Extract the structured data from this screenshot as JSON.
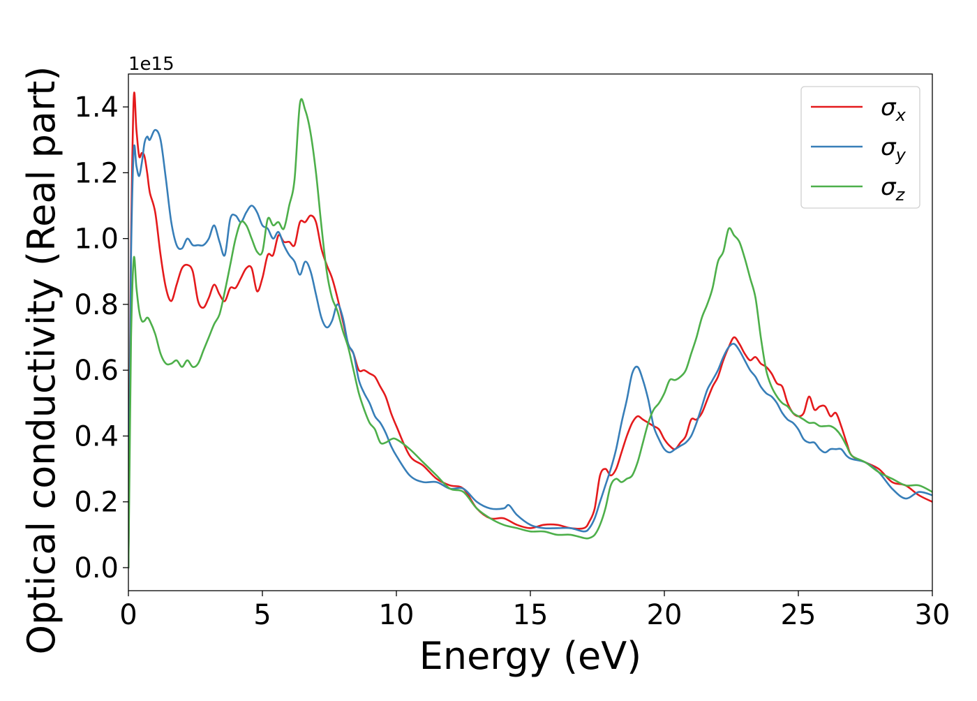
{
  "chart_data": {
    "type": "line",
    "title": "",
    "xlabel": "Energy (eV)",
    "ylabel": "Optical conductivity (Real part)",
    "y_offset_label": "1e15",
    "xlim": [
      0,
      30
    ],
    "ylim": [
      -0.07,
      1.5
    ],
    "x_ticks": [
      0,
      5,
      10,
      15,
      20,
      25,
      30
    ],
    "x_tick_labels": [
      "0",
      "5",
      "10",
      "15",
      "20",
      "25",
      "30"
    ],
    "y_ticks": [
      0.0,
      0.2,
      0.4,
      0.6,
      0.8,
      1.0,
      1.2,
      1.4
    ],
    "y_tick_labels": [
      "0.0",
      "0.2",
      "0.4",
      "0.6",
      "0.8",
      "1.0",
      "1.2",
      "1.4"
    ],
    "grid": false,
    "legend_position": "top-right",
    "series": [
      {
        "name": "σx",
        "symbol": "σ",
        "subscript": "x",
        "color": "#e41a1c",
        "x": [
          0,
          0.05,
          0.1,
          0.2,
          0.3,
          0.4,
          0.5,
          0.6,
          0.7,
          0.8,
          1.0,
          1.2,
          1.4,
          1.6,
          1.8,
          2.0,
          2.2,
          2.4,
          2.6,
          2.8,
          3.0,
          3.2,
          3.4,
          3.6,
          3.8,
          4.0,
          4.2,
          4.4,
          4.6,
          4.8,
          5.0,
          5.2,
          5.4,
          5.6,
          5.8,
          6.0,
          6.2,
          6.4,
          6.6,
          6.8,
          7.0,
          7.2,
          7.4,
          7.6,
          7.8,
          8.0,
          8.2,
          8.4,
          8.6,
          8.8,
          9.0,
          9.2,
          9.4,
          9.6,
          9.8,
          10.0,
          10.5,
          11.0,
          11.5,
          12.0,
          12.5,
          13.0,
          13.5,
          14.0,
          14.5,
          15.0,
          15.5,
          16.0,
          16.5,
          17.0,
          17.2,
          17.4,
          17.6,
          17.8,
          18.0,
          18.2,
          18.4,
          18.6,
          18.8,
          19.0,
          19.2,
          19.4,
          19.6,
          19.8,
          20.0,
          20.2,
          20.4,
          20.6,
          20.8,
          21.0,
          21.2,
          21.4,
          21.6,
          21.8,
          22.0,
          22.2,
          22.4,
          22.6,
          22.8,
          23.0,
          23.2,
          23.4,
          23.6,
          23.8,
          24.0,
          24.2,
          24.4,
          24.6,
          24.8,
          25.0,
          25.2,
          25.4,
          25.6,
          25.8,
          26.0,
          26.2,
          26.4,
          26.6,
          26.8,
          27.0,
          27.5,
          28.0,
          28.5,
          29.0,
          29.5,
          30.0
        ],
        "y": [
          0.0,
          0.55,
          1.0,
          1.43,
          1.33,
          1.25,
          1.26,
          1.25,
          1.2,
          1.14,
          1.08,
          0.95,
          0.85,
          0.81,
          0.86,
          0.91,
          0.92,
          0.9,
          0.81,
          0.79,
          0.82,
          0.86,
          0.83,
          0.81,
          0.85,
          0.85,
          0.88,
          0.91,
          0.91,
          0.84,
          0.88,
          0.95,
          0.95,
          1.01,
          0.99,
          0.99,
          0.98,
          1.05,
          1.05,
          1.07,
          1.05,
          0.97,
          0.92,
          0.88,
          0.82,
          0.75,
          0.68,
          0.65,
          0.6,
          0.6,
          0.59,
          0.58,
          0.55,
          0.52,
          0.47,
          0.43,
          0.34,
          0.31,
          0.27,
          0.25,
          0.24,
          0.18,
          0.15,
          0.15,
          0.13,
          0.12,
          0.13,
          0.13,
          0.12,
          0.12,
          0.14,
          0.18,
          0.28,
          0.3,
          0.28,
          0.3,
          0.35,
          0.4,
          0.44,
          0.46,
          0.45,
          0.44,
          0.43,
          0.42,
          0.39,
          0.37,
          0.36,
          0.38,
          0.4,
          0.45,
          0.45,
          0.47,
          0.51,
          0.55,
          0.58,
          0.63,
          0.67,
          0.7,
          0.68,
          0.65,
          0.63,
          0.64,
          0.62,
          0.61,
          0.59,
          0.56,
          0.55,
          0.5,
          0.47,
          0.46,
          0.47,
          0.52,
          0.48,
          0.49,
          0.49,
          0.46,
          0.47,
          0.43,
          0.38,
          0.34,
          0.32,
          0.3,
          0.26,
          0.25,
          0.22,
          0.2
        ]
      },
      {
        "name": "σy",
        "symbol": "σ",
        "subscript": "y",
        "color": "#377eb8",
        "x": [
          0,
          0.05,
          0.1,
          0.2,
          0.3,
          0.4,
          0.5,
          0.6,
          0.7,
          0.8,
          1.0,
          1.2,
          1.4,
          1.6,
          1.8,
          2.0,
          2.2,
          2.4,
          2.6,
          2.8,
          3.0,
          3.2,
          3.4,
          3.6,
          3.8,
          4.0,
          4.2,
          4.4,
          4.6,
          4.8,
          5.0,
          5.2,
          5.4,
          5.6,
          5.8,
          6.0,
          6.2,
          6.4,
          6.6,
          6.8,
          7.0,
          7.2,
          7.4,
          7.6,
          7.8,
          8.0,
          8.2,
          8.4,
          8.6,
          8.8,
          9.0,
          9.2,
          9.4,
          9.6,
          9.8,
          10.0,
          10.5,
          11.0,
          11.5,
          12.0,
          12.5,
          13.0,
          13.5,
          14.0,
          14.2,
          14.5,
          15.0,
          15.5,
          16.0,
          16.5,
          17.0,
          17.2,
          17.4,
          17.6,
          17.8,
          18.0,
          18.2,
          18.4,
          18.6,
          18.8,
          19.0,
          19.2,
          19.4,
          19.6,
          19.8,
          20.0,
          20.2,
          20.4,
          20.6,
          20.8,
          21.0,
          21.2,
          21.4,
          21.6,
          21.8,
          22.0,
          22.2,
          22.4,
          22.6,
          22.8,
          23.0,
          23.2,
          23.4,
          23.6,
          23.8,
          24.0,
          24.2,
          24.4,
          24.6,
          24.8,
          25.0,
          25.2,
          25.4,
          25.6,
          25.8,
          26.0,
          26.2,
          26.4,
          26.6,
          26.8,
          27.0,
          27.5,
          28.0,
          28.5,
          29.0,
          29.5,
          30.0
        ],
        "y": [
          0.0,
          0.5,
          0.95,
          1.27,
          1.22,
          1.19,
          1.23,
          1.29,
          1.31,
          1.3,
          1.33,
          1.3,
          1.18,
          1.05,
          0.98,
          0.97,
          1.0,
          0.98,
          0.98,
          0.98,
          1.0,
          1.04,
          0.99,
          0.95,
          1.06,
          1.07,
          1.05,
          1.08,
          1.1,
          1.08,
          1.04,
          1.03,
          1.0,
          1.02,
          0.98,
          0.95,
          0.93,
          0.89,
          0.93,
          0.9,
          0.83,
          0.76,
          0.73,
          0.75,
          0.8,
          0.76,
          0.68,
          0.65,
          0.57,
          0.53,
          0.5,
          0.46,
          0.44,
          0.41,
          0.37,
          0.34,
          0.28,
          0.26,
          0.26,
          0.24,
          0.24,
          0.2,
          0.18,
          0.18,
          0.19,
          0.16,
          0.13,
          0.12,
          0.12,
          0.12,
          0.11,
          0.12,
          0.15,
          0.2,
          0.25,
          0.3,
          0.36,
          0.44,
          0.51,
          0.59,
          0.61,
          0.57,
          0.51,
          0.43,
          0.39,
          0.36,
          0.35,
          0.36,
          0.37,
          0.38,
          0.4,
          0.44,
          0.49,
          0.54,
          0.57,
          0.6,
          0.64,
          0.67,
          0.68,
          0.66,
          0.63,
          0.6,
          0.58,
          0.55,
          0.53,
          0.52,
          0.5,
          0.47,
          0.45,
          0.44,
          0.42,
          0.39,
          0.38,
          0.38,
          0.36,
          0.35,
          0.36,
          0.36,
          0.36,
          0.34,
          0.33,
          0.32,
          0.29,
          0.24,
          0.21,
          0.23,
          0.22
        ]
      },
      {
        "name": "σz",
        "symbol": "σ",
        "subscript": "z",
        "color": "#4daf4a",
        "x": [
          0,
          0.05,
          0.1,
          0.2,
          0.3,
          0.4,
          0.5,
          0.6,
          0.7,
          0.8,
          1.0,
          1.2,
          1.4,
          1.6,
          1.8,
          2.0,
          2.2,
          2.4,
          2.6,
          2.8,
          3.0,
          3.2,
          3.4,
          3.6,
          3.8,
          4.0,
          4.2,
          4.4,
          4.6,
          4.8,
          5.0,
          5.2,
          5.4,
          5.6,
          5.8,
          6.0,
          6.2,
          6.4,
          6.6,
          6.8,
          7.0,
          7.2,
          7.4,
          7.6,
          7.8,
          8.0,
          8.2,
          8.4,
          8.6,
          8.8,
          9.0,
          9.2,
          9.4,
          9.6,
          9.8,
          10.0,
          10.5,
          11.0,
          11.5,
          12.0,
          12.5,
          13.0,
          13.5,
          14.0,
          14.5,
          15.0,
          15.5,
          16.0,
          16.5,
          17.0,
          17.2,
          17.4,
          17.6,
          17.8,
          18.0,
          18.2,
          18.4,
          18.6,
          18.8,
          19.0,
          19.2,
          19.4,
          19.6,
          19.8,
          20.0,
          20.2,
          20.4,
          20.6,
          20.8,
          21.0,
          21.2,
          21.4,
          21.6,
          21.8,
          22.0,
          22.2,
          22.4,
          22.6,
          22.8,
          23.0,
          23.2,
          23.4,
          23.6,
          23.8,
          24.0,
          24.2,
          24.4,
          24.6,
          24.8,
          25.0,
          25.2,
          25.4,
          25.6,
          25.8,
          26.0,
          26.2,
          26.4,
          26.6,
          26.8,
          27.0,
          27.5,
          28.0,
          28.5,
          29.0,
          29.5,
          30.0
        ],
        "y": [
          0.0,
          0.35,
          0.7,
          0.94,
          0.85,
          0.78,
          0.75,
          0.75,
          0.76,
          0.75,
          0.71,
          0.65,
          0.62,
          0.62,
          0.63,
          0.61,
          0.63,
          0.61,
          0.62,
          0.66,
          0.7,
          0.74,
          0.77,
          0.84,
          0.92,
          1.0,
          1.05,
          1.04,
          1.0,
          0.96,
          0.96,
          1.06,
          1.04,
          1.05,
          1.03,
          1.1,
          1.18,
          1.41,
          1.39,
          1.32,
          1.2,
          1.04,
          0.9,
          0.82,
          0.78,
          0.72,
          0.67,
          0.6,
          0.53,
          0.48,
          0.44,
          0.42,
          0.38,
          0.38,
          0.39,
          0.39,
          0.36,
          0.32,
          0.28,
          0.24,
          0.23,
          0.18,
          0.15,
          0.13,
          0.12,
          0.11,
          0.11,
          0.1,
          0.1,
          0.09,
          0.09,
          0.1,
          0.13,
          0.18,
          0.25,
          0.27,
          0.26,
          0.27,
          0.28,
          0.32,
          0.38,
          0.44,
          0.48,
          0.5,
          0.53,
          0.57,
          0.57,
          0.58,
          0.6,
          0.65,
          0.7,
          0.76,
          0.8,
          0.85,
          0.93,
          0.96,
          1.03,
          1.01,
          0.99,
          0.94,
          0.88,
          0.82,
          0.7,
          0.6,
          0.55,
          0.52,
          0.5,
          0.49,
          0.47,
          0.46,
          0.45,
          0.44,
          0.44,
          0.43,
          0.43,
          0.43,
          0.42,
          0.4,
          0.37,
          0.34,
          0.32,
          0.29,
          0.27,
          0.25,
          0.25,
          0.23
        ]
      }
    ]
  }
}
